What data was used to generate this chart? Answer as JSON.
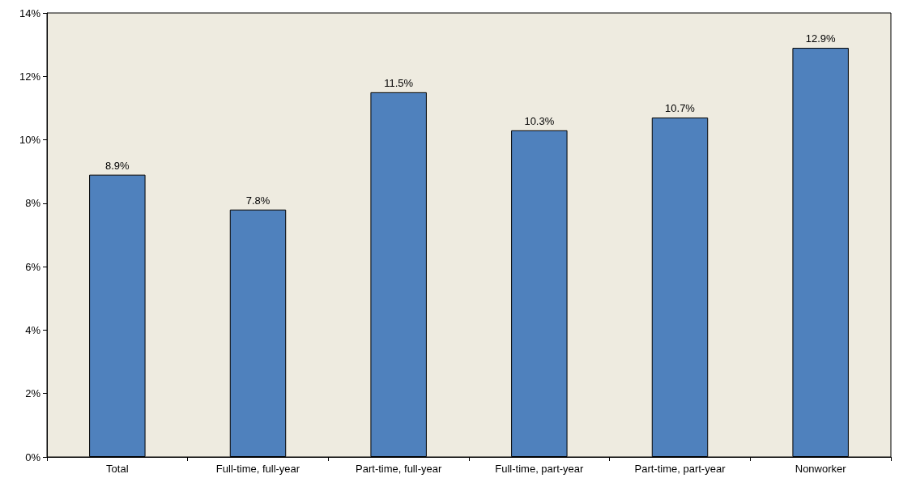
{
  "chart_data": {
    "type": "bar",
    "categories": [
      "Total",
      "Full-time, full-year",
      "Part-time, full-year",
      "Full-time, part-year",
      "Part-time, part-year",
      "Nonworker"
    ],
    "values": [
      8.9,
      7.8,
      11.5,
      10.3,
      10.7,
      12.9
    ],
    "value_labels": [
      "8.9%",
      "7.8%",
      "11.5%",
      "10.3%",
      "10.7%",
      "12.9%"
    ],
    "color": "#4f81bd",
    "ylim": [
      0,
      14
    ],
    "yticks": [
      {
        "value": 0,
        "label": "0%"
      },
      {
        "value": 2,
        "label": "2%"
      },
      {
        "value": 4,
        "label": "4%"
      },
      {
        "value": 6,
        "label": "6%"
      },
      {
        "value": 8,
        "label": "8%"
      },
      {
        "value": 10,
        "label": "10%"
      },
      {
        "value": 12,
        "label": "12%"
      },
      {
        "value": 14,
        "label": "14%"
      }
    ],
    "grid": false
  }
}
